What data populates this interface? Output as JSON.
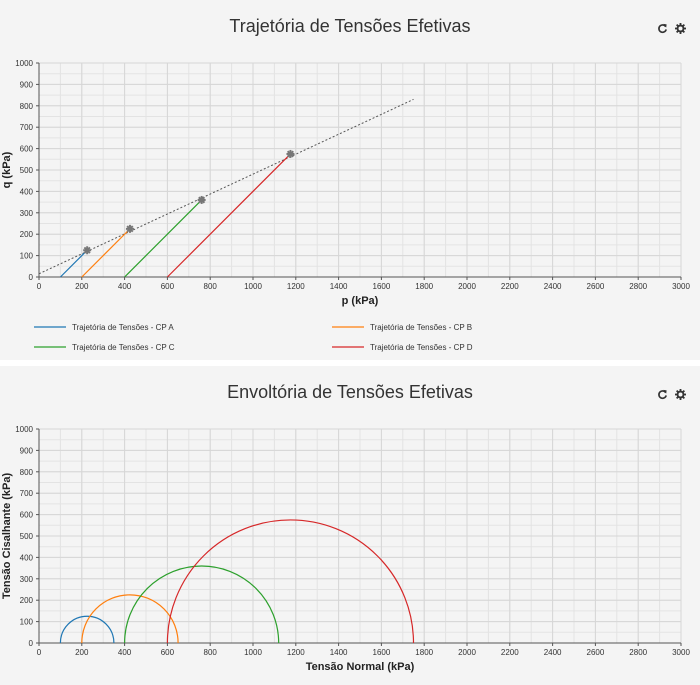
{
  "icons": {
    "refresh": "refresh-icon",
    "settings": "gear-icon"
  },
  "charts": {
    "top": {
      "title": "Trajetória de Tensões Efetivas"
    },
    "bottom": {
      "title": "Envoltória de Tensões Efetivas"
    }
  },
  "chart_data": [
    {
      "type": "line",
      "title": "Trajetória de Tensões Efetivas",
      "xlabel": "p (kPa)",
      "ylabel": "q (kPa)",
      "xlim": [
        0,
        3000
      ],
      "ylim": [
        0,
        1000
      ],
      "x_ticks": [
        0,
        200,
        400,
        600,
        800,
        1000,
        1200,
        1400,
        1600,
        1800,
        2000,
        2200,
        2400,
        2600,
        2800,
        3000
      ],
      "y_ticks": [
        0,
        100,
        200,
        300,
        400,
        500,
        600,
        700,
        800,
        900,
        1000
      ],
      "grid": true,
      "legend_position": "bottom",
      "series": [
        {
          "name": "Trajetória de Tensões - CP A",
          "color": "#1f77b4",
          "x": [
            100,
            225
          ],
          "y": [
            0,
            125
          ]
        },
        {
          "name": "Trajetória de Tensões - CP B",
          "color": "#ff7f0e",
          "x": [
            200,
            425
          ],
          "y": [
            0,
            225
          ]
        },
        {
          "name": "Trajetória de Tensões - CP C",
          "color": "#2ca02c",
          "x": [
            400,
            760
          ],
          "y": [
            0,
            360
          ]
        },
        {
          "name": "Trajetória de Tensões - CP D",
          "color": "#d62728",
          "x": [
            600,
            1175
          ],
          "y": [
            0,
            575
          ]
        }
      ],
      "failure_points": {
        "x": [
          225,
          425,
          760,
          1175
        ],
        "y": [
          125,
          225,
          360,
          575
        ],
        "color": "#777777"
      },
      "fit_line": {
        "x": [
          0,
          1750
        ],
        "y": [
          15,
          830
        ],
        "color": "#555555",
        "style": "dotted"
      }
    },
    {
      "type": "line",
      "title": "Envoltória de Tensões Efetivas",
      "xlabel": "Tensão Normal (kPa)",
      "ylabel": "Tensão Cisalhante (kPa)",
      "xlim": [
        0,
        3000
      ],
      "ylim": [
        0,
        1000
      ],
      "x_ticks": [
        0,
        200,
        400,
        600,
        800,
        1000,
        1200,
        1400,
        1600,
        1800,
        2000,
        2200,
        2400,
        2600,
        2800,
        3000
      ],
      "y_ticks": [
        0,
        100,
        200,
        300,
        400,
        500,
        600,
        700,
        800,
        900,
        1000
      ],
      "grid": true,
      "circles": [
        {
          "center": 225,
          "radius": 125,
          "color": "#1f77b4"
        },
        {
          "center": 425,
          "radius": 225,
          "color": "#ff7f0e"
        },
        {
          "center": 760,
          "radius": 360,
          "color": "#2ca02c"
        },
        {
          "center": 1175,
          "radius": 575,
          "color": "#d62728"
        }
      ]
    }
  ]
}
